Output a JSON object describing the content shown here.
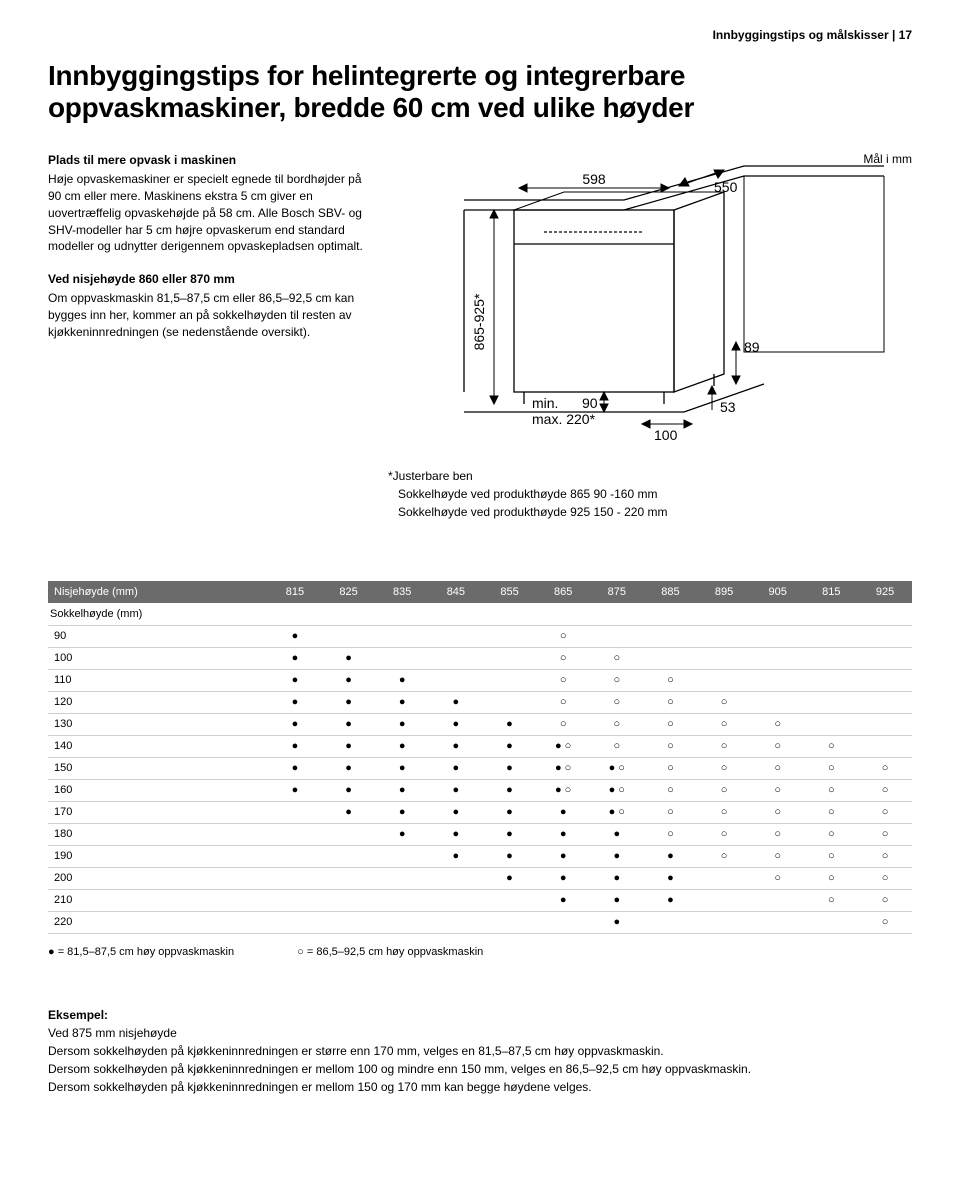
{
  "header": {
    "breadcrumb": "Innbyggingstips og målskisser | 17"
  },
  "title": "Innbyggingstips for helintegrerte og integrerbare oppvaskmaskiner, bredde 60 cm ved ulike høyder",
  "intro": {
    "h1": "Plads til mere opvask i maskinen",
    "p1": "Høje opvaskemaskiner er specielt egnede til bordhøjder på 90 cm eller mere. Maskinens ekstra 5 cm giver en uovertræffelig opvaskehøjde på 58 cm. Alle Bosch SBV- og SHV-modeller har 5 cm højre opvaskerum end standard modeller og udnytter derigennem opvaskepladsen optimalt.",
    "h2": "Ved nisjehøyde 860 eller 870 mm",
    "p2": "Om oppvaskmaskin 81,5–87,5 cm eller 86,5–92,5 cm kan bygges inn her, kommer an på sokkelhøyden til resten av kjøkkeninnredningen (se nedenstående oversikt)."
  },
  "mal": "Mål i mm",
  "diagram": {
    "height_label": "865-925*",
    "top_width": "598",
    "depth": "550",
    "foot": "89",
    "base": "53",
    "gap_front": "100",
    "min_label": "min.",
    "min_val": "90",
    "max_label": "max. 220*",
    "stroke": "#000000",
    "fill": "#ffffff"
  },
  "footnotes": {
    "l1": "*Justerbare ben",
    "l2": "Sokkelhøyde ved produkthøyde 865  90 -160 mm",
    "l3": "Sokkelhøyde ved produkthøyde 925  150 - 220 mm"
  },
  "table": {
    "header_label": "Nisjehøyde (mm)",
    "subheader": "Sokkelhøyde (mm)",
    "columns": [
      "815",
      "825",
      "835",
      "845",
      "855",
      "865",
      "875",
      "885",
      "895",
      "905",
      "815",
      "925"
    ],
    "rows": [
      {
        "h": "90",
        "c": [
          "●",
          "",
          "",
          "",
          "",
          "○",
          "",
          "",
          "",
          "",
          "",
          ""
        ]
      },
      {
        "h": "100",
        "c": [
          "●",
          "●",
          "",
          "",
          "",
          "○",
          "○",
          "",
          "",
          "",
          "",
          ""
        ]
      },
      {
        "h": "110",
        "c": [
          "●",
          "●",
          "●",
          "",
          "",
          "○",
          "○",
          "○",
          "",
          "",
          "",
          ""
        ]
      },
      {
        "h": "120",
        "c": [
          "●",
          "●",
          "●",
          "●",
          "",
          "○",
          "○",
          "○",
          "○",
          "",
          "",
          ""
        ]
      },
      {
        "h": "130",
        "c": [
          "●",
          "●",
          "●",
          "●",
          "●",
          "○",
          "○",
          "○",
          "○",
          "○",
          "",
          ""
        ]
      },
      {
        "h": "140",
        "c": [
          "●",
          "●",
          "●",
          "●",
          "●",
          "● ○",
          "○",
          "○",
          "○",
          "○",
          "○",
          ""
        ]
      },
      {
        "h": "150",
        "c": [
          "●",
          "●",
          "●",
          "●",
          "●",
          "● ○",
          "● ○",
          "○",
          "○",
          "○",
          "○",
          "○"
        ]
      },
      {
        "h": "160",
        "c": [
          "●",
          "●",
          "●",
          "●",
          "●",
          "● ○",
          "● ○",
          "○",
          "○",
          "○",
          "○",
          "○"
        ]
      },
      {
        "h": "170",
        "c": [
          "",
          "●",
          "●",
          "●",
          "●",
          "●",
          "● ○",
          "○",
          "○",
          "○",
          "○",
          "○"
        ]
      },
      {
        "h": "180",
        "c": [
          "",
          "",
          "●",
          "●",
          "●",
          "●",
          "●",
          "○",
          "○",
          "○",
          "○",
          "○"
        ]
      },
      {
        "h": "190",
        "c": [
          "",
          "",
          "",
          "●",
          "●",
          "●",
          "●",
          "●",
          "○",
          "○",
          "○",
          "○"
        ]
      },
      {
        "h": "200",
        "c": [
          "",
          "",
          "",
          "",
          "●",
          "●",
          "●",
          "●",
          "",
          "○",
          "○",
          "○"
        ]
      },
      {
        "h": "210",
        "c": [
          "",
          "",
          "",
          "",
          "",
          "●",
          "●",
          "●",
          "",
          "",
          "○",
          "○"
        ]
      },
      {
        "h": "220",
        "c": [
          "",
          "",
          "",
          "",
          "",
          "",
          "●",
          "",
          "",
          "",
          "",
          "○"
        ]
      }
    ]
  },
  "legend": {
    "solid": "● = 81,5–87,5 cm høy oppvaskmaskin",
    "hollow": "○ = 86,5–92,5 cm høy oppvaskmaskin"
  },
  "example": {
    "title": "Eksempel:",
    "sub": "Ved 875 mm nisjehøyde",
    "l1": "Dersom sokkelhøyden på kjøkkeninnredningen er større enn 170 mm, velges en 81,5–87,5 cm høy oppvaskmaskin.",
    "l2": "Dersom sokkelhøyden på kjøkkeninnredningen er mellom 100 og mindre enn 150 mm, velges en 86,5–92,5 cm høy oppvaskmaskin.",
    "l3": "Dersom sokkelhøyden på kjøkkeninnredningen er mellom 150 og 170 mm kan begge høydene velges."
  }
}
